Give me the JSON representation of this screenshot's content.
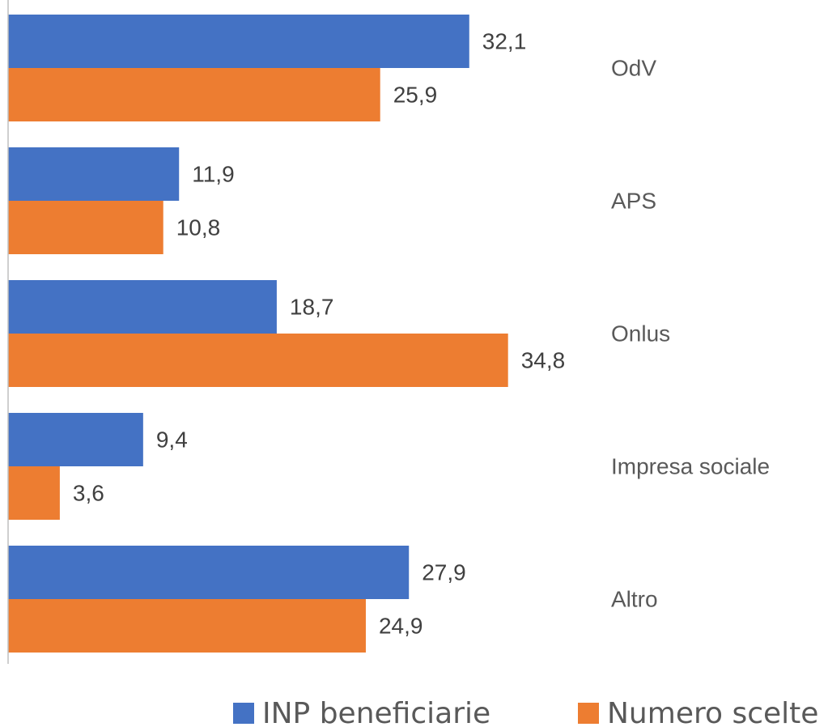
{
  "chart_data": {
    "type": "barh",
    "categories": [
      "OdV",
      "APS",
      "Onlus",
      "Impresa sociale",
      "Altro"
    ],
    "series": [
      {
        "name": "INP beneficiarie",
        "color": "#4472c4",
        "values": [
          32.1,
          11.9,
          18.7,
          9.4,
          27.9
        ],
        "value_labels": [
          "32,1",
          "11,9",
          "18,7",
          "9,4",
          "27,9"
        ]
      },
      {
        "name": "Numero scelte",
        "color": "#ed7d31",
        "values": [
          25.9,
          10.8,
          34.8,
          3.6,
          24.9
        ],
        "value_labels": [
          "25,9",
          "10,8",
          "34,8",
          "3,6",
          "24,9"
        ]
      }
    ],
    "xlim": [
      0,
      40
    ],
    "legend": "bottom"
  }
}
